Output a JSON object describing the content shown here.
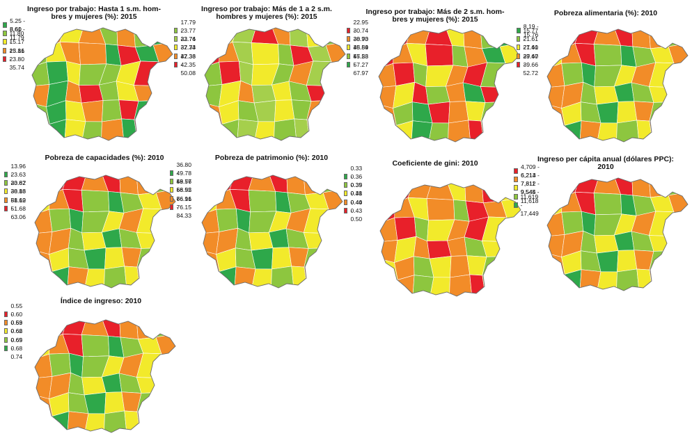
{
  "panels": [
    {
      "id": "p1",
      "title": "Ingreso por trabajo: Hasta 1 s.m. hom-\nbres y mujeres (%): 2015",
      "legend": [
        {
          "label": "5.25 - 8.60",
          "color": "#2ea84a"
        },
        {
          "label": "8.61 - 11.79",
          "color": "#8dc63f"
        },
        {
          "label": "11.80 - 15.16",
          "color": "#f2ea2b"
        },
        {
          "label": "15.17 - 23.80",
          "color": "#f28c28"
        },
        {
          "label": "23.81 - 35.74",
          "color": "#e8202a"
        }
      ],
      "region_classes": [
        3,
        3,
        2,
        3,
        1,
        3,
        1,
        0,
        1,
        2,
        3,
        3,
        0,
        4,
        0,
        3,
        1,
        0,
        2,
        1,
        1,
        2,
        4,
        0,
        3,
        0,
        3,
        4,
        1,
        2,
        3,
        0,
        1,
        0,
        2,
        3,
        1,
        4,
        0,
        1,
        1,
        0,
        2,
        1,
        3,
        0,
        4,
        1
      ]
    },
    {
      "id": "p2",
      "title": "Ingreso por trabajo: Más de 1 a 2 s.m.\nhombres y mujeres (%): 2015",
      "legend": [
        {
          "label": "17.79 - 23.76",
          "color": "#8dc63f"
        },
        {
          "label": "23.77 - 32.73",
          "color": "#a5cf4c"
        },
        {
          "label": "32.74 - 37.33",
          "color": "#f2ea2b"
        },
        {
          "label": "37.34 - 42.35",
          "color": "#f28c28"
        },
        {
          "label": "42.36 - 50.08",
          "color": "#e8202a"
        }
      ],
      "region_classes": [
        4,
        2,
        1,
        4,
        3,
        1,
        2,
        0,
        4,
        3,
        1,
        2,
        0,
        4,
        1,
        3,
        0,
        4,
        1,
        2,
        0,
        3,
        1,
        4,
        0,
        2,
        3,
        1,
        2,
        0,
        4,
        1,
        3,
        2,
        0,
        1,
        2,
        0,
        3,
        1,
        2,
        0,
        1,
        2,
        0,
        1,
        2,
        3
      ]
    },
    {
      "id": "p3",
      "title": "Ingreso por trabajo: Más de 2 s.m. hom-\nbres y mujeres (%): 2015",
      "legend": [
        {
          "label": "22.95 - 30.73",
          "color": "#e8202a"
        },
        {
          "label": "30.74 - 38.89",
          "color": "#f28c28"
        },
        {
          "label": "38.90 - 45.53",
          "color": "#f2ea2b"
        },
        {
          "label": "45.54 - 57.27",
          "color": "#8dc63f"
        },
        {
          "label": "57.28 - 67.97",
          "color": "#2ea84a"
        }
      ],
      "region_classes": [
        1,
        0,
        1,
        0,
        2,
        1,
        3,
        4,
        0,
        1,
        2,
        0,
        3,
        1,
        4,
        2,
        1,
        0,
        3,
        2,
        1,
        0,
        3,
        4,
        1,
        2,
        0,
        3,
        1,
        4,
        0,
        2,
        1,
        3,
        4,
        0,
        1,
        2,
        3,
        0,
        1,
        2,
        4,
        3,
        1,
        0,
        2,
        3
      ]
    },
    {
      "id": "p4",
      "title": "Pobreza alimentaria (%): 2010",
      "legend": [
        {
          "label": "8.19 - 15.76",
          "color": "#2ea84a"
        },
        {
          "label": "15.77 - 21.60",
          "color": "#8dc63f"
        },
        {
          "label": "21.61 - 27.40",
          "color": "#f2ea2b"
        },
        {
          "label": "27.41 - 39.66",
          "color": "#f28c28"
        },
        {
          "label": "39.67 - 52.72",
          "color": "#e8202a"
        }
      ],
      "region_classes": [
        3,
        4,
        4,
        3,
        4,
        3,
        3,
        1,
        2,
        3,
        4,
        1,
        0,
        1,
        2,
        3,
        3,
        1,
        0,
        1,
        2,
        3,
        2,
        1,
        3,
        3,
        1,
        2,
        0,
        1,
        2,
        1,
        3,
        2,
        1,
        0,
        2,
        3,
        1,
        2,
        1,
        0,
        3,
        2,
        1,
        2,
        3,
        1
      ]
    },
    {
      "id": "p5",
      "title": "Pobreza de capacidades (%): 2010",
      "legend": [
        {
          "label": "13.96 - 23.62",
          "color": "#2ea84a"
        },
        {
          "label": "23.63 - 30.86",
          "color": "#8dc63f"
        },
        {
          "label": "30.87 - 38.12",
          "color": "#f2ea2b"
        },
        {
          "label": "38.13 - 51.68",
          "color": "#f28c28"
        },
        {
          "label": "51.69 - 63.06",
          "color": "#e8202a"
        }
      ],
      "region_classes": [
        3,
        4,
        4,
        3,
        4,
        3,
        3,
        1,
        2,
        3,
        4,
        1,
        0,
        1,
        2,
        3,
        3,
        1,
        0,
        1,
        2,
        3,
        2,
        1,
        3,
        3,
        1,
        2,
        0,
        1,
        2,
        1,
        3,
        2,
        1,
        0,
        2,
        3,
        1,
        2,
        1,
        0,
        3,
        2,
        1,
        2,
        3,
        1
      ]
    },
    {
      "id": "p6",
      "title": "Pobreza de patrimonio (%): 2010",
      "legend": [
        {
          "label": "36.80 - 49.77",
          "color": "#2ea84a"
        },
        {
          "label": "49.78 - 58.55",
          "color": "#8dc63f"
        },
        {
          "label": "58.56 - 66.91",
          "color": "#f2ea2b"
        },
        {
          "label": "66.92 - 76.15",
          "color": "#f28c28"
        },
        {
          "label": "76.16 - 84.33",
          "color": "#e8202a"
        }
      ],
      "region_classes": [
        3,
        4,
        4,
        3,
        4,
        3,
        3,
        1,
        2,
        3,
        4,
        1,
        0,
        1,
        2,
        3,
        3,
        1,
        0,
        1,
        2,
        3,
        2,
        1,
        3,
        3,
        1,
        2,
        0,
        1,
        2,
        1,
        3,
        2,
        1,
        0,
        2,
        3,
        1,
        2,
        1,
        0,
        3,
        2,
        1,
        2,
        3,
        1
      ]
    },
    {
      "id": "p7",
      "title": "Coeficiente de gini: 2010",
      "legend": [
        {
          "label": "0.33 - 0.35",
          "color": "#2ea84a"
        },
        {
          "label": "0.36 - 0.38",
          "color": "#8dc63f"
        },
        {
          "label": "0.39 - 0.40",
          "color": "#f2ea2b"
        },
        {
          "label": "0.41 - 0.43",
          "color": "#f28c28"
        },
        {
          "label": "0.44 - 0.50",
          "color": "#e8202a"
        }
      ],
      "region_classes": [
        3,
        4,
        3,
        3,
        2,
        3,
        4,
        2,
        4,
        3,
        2,
        3,
        1,
        4,
        3,
        2,
        3,
        4,
        1,
        2,
        3,
        4,
        2,
        1,
        3,
        2,
        3,
        4,
        3,
        1,
        2,
        3,
        2,
        3,
        1,
        2,
        3,
        2,
        1,
        3,
        2,
        3,
        1,
        2,
        3,
        4,
        2,
        3
      ]
    },
    {
      "id": "p8",
      "title": "Ingreso per cápita anual (dólares PPC):\n2010",
      "legend": [
        {
          "label": "4,709 - 6,213",
          "color": "#e8202a"
        },
        {
          "label": "6,214 - 7,811",
          "color": "#f28c28"
        },
        {
          "label": "7,812 - 9,544",
          "color": "#f2ea2b"
        },
        {
          "label": "9,545 - 11,618",
          "color": "#8dc63f"
        },
        {
          "label": "11,619 - 17,449",
          "color": "#2ea84a"
        }
      ],
      "region_classes": [
        1,
        0,
        0,
        1,
        0,
        1,
        1,
        3,
        2,
        1,
        0,
        3,
        4,
        3,
        2,
        1,
        1,
        3,
        4,
        3,
        2,
        1,
        2,
        3,
        1,
        1,
        3,
        2,
        4,
        3,
        2,
        3,
        1,
        2,
        3,
        4,
        2,
        1,
        3,
        2,
        3,
        4,
        1,
        2,
        3,
        2,
        1,
        3
      ]
    },
    {
      "id": "p9",
      "title": "Índice de ingreso: 2010",
      "legend": [
        {
          "label": "0.55 - 0.59",
          "color": "#e8202a"
        },
        {
          "label": "0.60 - 0.62",
          "color": "#f28c28"
        },
        {
          "label": "0.63 - 0.65",
          "color": "#f2ea2b"
        },
        {
          "label": "0.66 - 0.68",
          "color": "#8dc63f"
        },
        {
          "label": "0.69 - 0.74",
          "color": "#2ea84a"
        }
      ],
      "region_classes": [
        1,
        0,
        0,
        1,
        0,
        1,
        1,
        3,
        2,
        1,
        0,
        3,
        4,
        3,
        2,
        1,
        1,
        3,
        4,
        3,
        2,
        1,
        2,
        3,
        1,
        1,
        3,
        2,
        4,
        3,
        2,
        3,
        1,
        2,
        3,
        4,
        2,
        1,
        3,
        2,
        3,
        4,
        1,
        2,
        3,
        2,
        1,
        3
      ]
    }
  ]
}
